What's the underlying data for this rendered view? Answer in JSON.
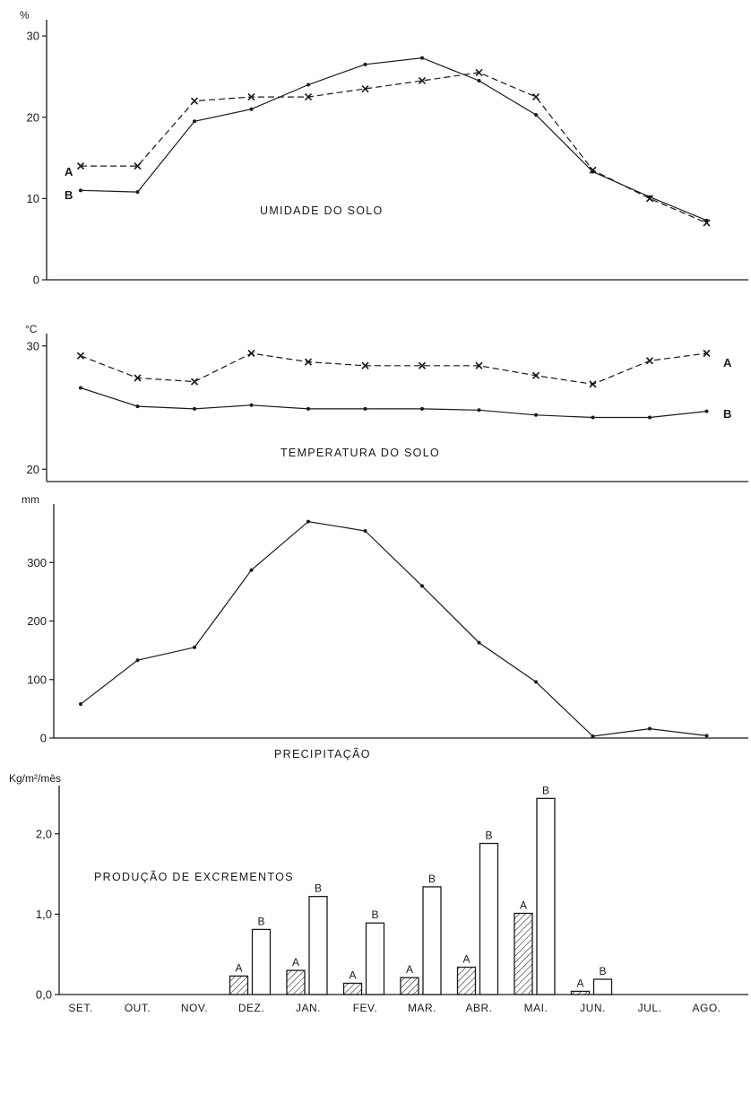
{
  "months": [
    "SET.",
    "OUT.",
    "NOV.",
    "DEZ.",
    "JAN.",
    "FEV.",
    "MAR.",
    "ABR.",
    "MAI.",
    "JUN.",
    "JUL.",
    "AGO."
  ],
  "chart_data": [
    {
      "type": "line",
      "title": "UMIDADE DO SOLO",
      "ylabel": "%",
      "ylim": [
        0,
        32
      ],
      "yticks": [
        0,
        10,
        20,
        30
      ],
      "ytick_labels": [
        "0",
        "10",
        "20",
        "30"
      ],
      "categories": [
        "SET.",
        "OUT.",
        "NOV.",
        "DEZ.",
        "JAN.",
        "FEV.",
        "MAR.",
        "ABR.",
        "MAI.",
        "JUN.",
        "JUL.",
        "AGO."
      ],
      "series": [
        {
          "name": "A",
          "style": "dashed-x",
          "values": [
            14,
            14,
            22,
            22.5,
            22.5,
            23.5,
            24.5,
            25.5,
            22.5,
            13.5,
            10,
            7
          ]
        },
        {
          "name": "B",
          "style": "solid-dot",
          "values": [
            11,
            10.8,
            19.5,
            21,
            24,
            26.5,
            27.3,
            24.5,
            20.3,
            13.3,
            10.2,
            7.3
          ]
        }
      ]
    },
    {
      "type": "line",
      "title": "TEMPERATURA DO SOLO",
      "ylabel": "°C",
      "ylim": [
        19,
        31
      ],
      "yticks": [
        20,
        30
      ],
      "ytick_labels": [
        "20",
        "30"
      ],
      "categories": [
        "SET.",
        "OUT.",
        "NOV.",
        "DEZ.",
        "JAN.",
        "FEV.",
        "MAR.",
        "ABR.",
        "MAI.",
        "JUN.",
        "JUL.",
        "AGO."
      ],
      "series": [
        {
          "name": "A",
          "style": "dashed-x",
          "values": [
            29.2,
            27.4,
            27.1,
            29.4,
            28.7,
            28.4,
            28.4,
            28.4,
            27.6,
            26.9,
            28.8,
            29.4
          ]
        },
        {
          "name": "B",
          "style": "solid-dot",
          "values": [
            26.6,
            25.1,
            24.9,
            25.2,
            24.9,
            24.9,
            24.9,
            24.8,
            24.4,
            24.2,
            24.2,
            24.7
          ]
        }
      ]
    },
    {
      "type": "line",
      "title": "PRECIPITAÇÃO",
      "ylabel": "mm",
      "ylim": [
        0,
        400
      ],
      "yticks": [
        0,
        100,
        200,
        300
      ],
      "ytick_labels": [
        "0",
        "100",
        "200",
        "300"
      ],
      "categories": [
        "SET.",
        "OUT.",
        "NOV.",
        "DEZ.",
        "JAN.",
        "FEV.",
        "MAR.",
        "ABR.",
        "MAI.",
        "JUN.",
        "JUL.",
        "AGO."
      ],
      "series": [
        {
          "style": "solid-dot",
          "values": [
            58,
            133,
            155,
            287,
            370,
            354,
            260,
            163,
            96,
            3,
            16,
            4
          ]
        }
      ]
    },
    {
      "type": "bar",
      "title": "PRODUÇÃO DE EXCREMENTOS",
      "ylabel": "Kg/m²/mês",
      "ylim": [
        0,
        2.6
      ],
      "yticks": [
        0,
        1,
        2
      ],
      "ytick_labels": [
        "0,0",
        "1,0",
        "2,0"
      ],
      "categories": [
        "SET.",
        "OUT.",
        "NOV.",
        "DEZ.",
        "JAN.",
        "FEV.",
        "MAR.",
        "ABR.",
        "MAI.",
        "JUN.",
        "JUL.",
        "AGO."
      ],
      "series": [
        {
          "name": "A",
          "style": "hatched",
          "values": [
            null,
            null,
            null,
            0.23,
            0.3,
            0.14,
            0.21,
            0.34,
            1.01,
            0.04,
            null,
            null
          ]
        },
        {
          "name": "B",
          "style": "open",
          "values": [
            null,
            null,
            null,
            0.81,
            1.22,
            0.89,
            1.34,
            1.88,
            2.44,
            0.19,
            null,
            null
          ]
        }
      ]
    }
  ]
}
